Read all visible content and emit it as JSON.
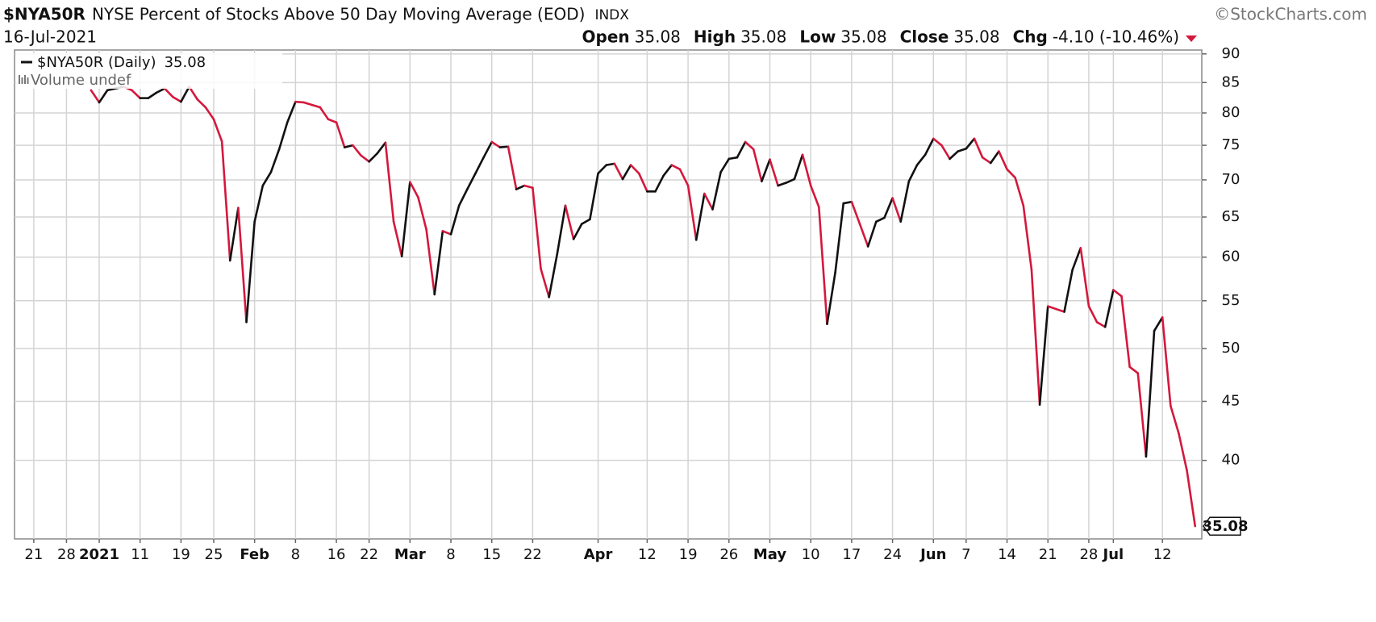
{
  "header": {
    "symbol": "$NYA50R",
    "name": "NYSE Percent of Stocks Above 50 Day Moving Average (EOD)",
    "exchange": "INDX",
    "source": "©StockCharts.com",
    "date": "16-Jul-2021",
    "quote": [
      {
        "label": "Open",
        "value": 35.08
      },
      {
        "label": "High",
        "value": 35.08
      },
      {
        "label": "Low",
        "value": 35.08
      },
      {
        "label": "Close",
        "value": 35.08
      },
      {
        "label": "Chg",
        "value": "-4.10 (-10.46%)"
      }
    ]
  },
  "chart_data": {
    "type": "line",
    "log_scale": true,
    "grid": true,
    "legend": "top-left",
    "up_color": "#111111",
    "down_color": "#d4183c",
    "volume_legend": "Volume undef",
    "ylim": [
      34.2,
      90.7
    ],
    "yticks": [
      40,
      45,
      50,
      55,
      60,
      65,
      70,
      75,
      80,
      85,
      90
    ],
    "categories": [
      null,
      null,
      "21",
      null,
      null,
      null,
      "28",
      null,
      null,
      null,
      "2021",
      null,
      null,
      null,
      null,
      "11",
      null,
      null,
      null,
      null,
      "19",
      null,
      null,
      null,
      "25",
      null,
      null,
      null,
      null,
      "Feb",
      null,
      null,
      null,
      null,
      "8",
      null,
      null,
      null,
      null,
      "16",
      null,
      null,
      null,
      "22",
      null,
      null,
      null,
      null,
      "Mar",
      null,
      null,
      null,
      null,
      "8",
      null,
      null,
      null,
      null,
      "15",
      null,
      null,
      null,
      null,
      "22",
      null,
      null,
      null,
      null,
      null,
      null,
      null,
      "Apr",
      null,
      null,
      null,
      null,
      null,
      "12",
      null,
      null,
      null,
      null,
      "19",
      null,
      null,
      null,
      null,
      "26",
      null,
      null,
      null,
      null,
      "May",
      null,
      null,
      null,
      null,
      "10",
      null,
      null,
      null,
      null,
      "17",
      null,
      null,
      null,
      null,
      "24",
      null,
      null,
      null,
      null,
      "Jun",
      null,
      null,
      null,
      "7",
      null,
      null,
      null,
      null,
      "14",
      null,
      null,
      null,
      null,
      "21",
      null,
      null,
      null,
      null,
      "28",
      null,
      null,
      "Jul",
      null,
      null,
      null,
      null,
      null,
      "12",
      null,
      null,
      null,
      null
    ],
    "series": [
      {
        "name": "$NYA50R (Daily)",
        "values": [
          null,
          null,
          null,
          null,
          null,
          null,
          null,
          null,
          null,
          83.7,
          81.7,
          83.7,
          84.0,
          84.3,
          83.7,
          82.4,
          82.4,
          83.3,
          84.0,
          82.6,
          81.8,
          84.3,
          82.2,
          80.9,
          79.0,
          75.6,
          59.6,
          66.2,
          52.7,
          64.4,
          69.2,
          71.1,
          74.4,
          78.5,
          81.8,
          81.7,
          81.3,
          80.9,
          79.0,
          78.5,
          74.7,
          75.0,
          73.5,
          72.6,
          73.8,
          75.4,
          64.4,
          60.1,
          69.7,
          67.6,
          63.4,
          55.7,
          63.2,
          62.8,
          66.5,
          68.7,
          70.9,
          73.2,
          75.5,
          74.7,
          74.8,
          68.7,
          69.2,
          68.9,
          58.6,
          55.4,
          60.4,
          66.5,
          62.2,
          64.1,
          64.7,
          70.9,
          72.1,
          72.3,
          70.1,
          72.1,
          70.9,
          68.4,
          68.4,
          70.6,
          72.1,
          71.5,
          69.2,
          62.1,
          68.1,
          66.0,
          71.1,
          73.0,
          73.2,
          75.5,
          74.4,
          69.8,
          72.9,
          69.2,
          69.6,
          70.1,
          73.6,
          69.2,
          66.3,
          52.5,
          58.2,
          66.8,
          67.0,
          64.1,
          61.3,
          64.4,
          64.9,
          67.5,
          64.4,
          69.8,
          72.1,
          73.6,
          76.0,
          75.0,
          73.0,
          74.1,
          74.5,
          76.0,
          73.2,
          72.4,
          74.1,
          71.5,
          70.3,
          66.5,
          58.5,
          44.7,
          54.4,
          54.1,
          53.8,
          58.5,
          61.1,
          54.4,
          52.7,
          52.2,
          56.2,
          55.5,
          48.2,
          47.6,
          40.3,
          51.8,
          53.2,
          44.6,
          42.2,
          39.18,
          35.08
        ]
      }
    ]
  }
}
